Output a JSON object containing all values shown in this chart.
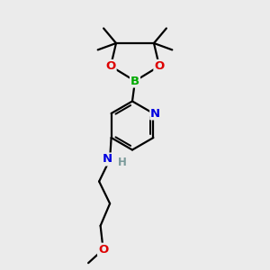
{
  "bg_color": "#ebebeb",
  "atom_colors": {
    "C": "#000000",
    "H": "#7a9a9a",
    "N": "#0000e0",
    "O": "#dd0000",
    "B": "#00aa00"
  },
  "bond_color": "#000000",
  "bond_width": 1.6,
  "fig_size": [
    3.0,
    3.0
  ],
  "dpi": 100,
  "xlim": [
    0,
    10
  ],
  "ylim": [
    0,
    10
  ]
}
